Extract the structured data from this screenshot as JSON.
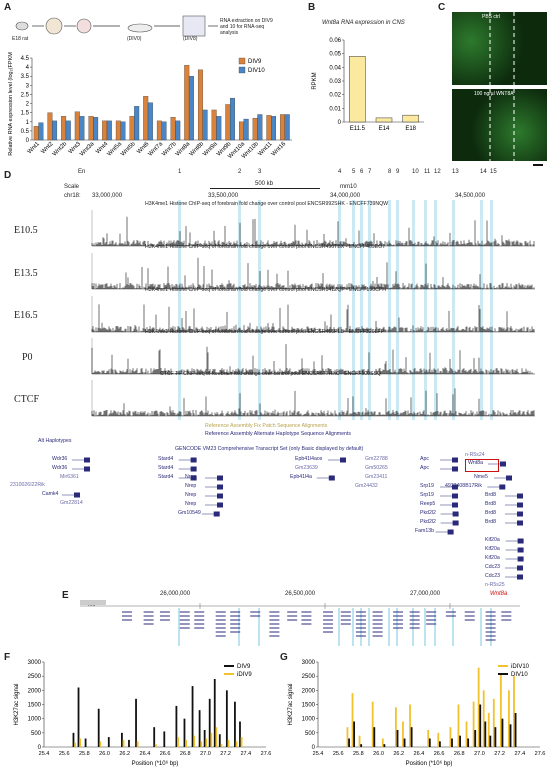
{
  "panels": {
    "A": "A",
    "B": "B",
    "C": "C",
    "D": "D",
    "E": "E",
    "F": "F",
    "G": "G"
  },
  "panelA": {
    "workflow": {
      "label_e18": "E18 rat",
      "label_div0": "(DIV0)",
      "label_div8": "(DIV8)",
      "note": "RNA extraction on DIV9 and 10 for RNA-seq analysis"
    },
    "ylabel": "Relative RNA expression level (log₂(FPKM+1))",
    "legend": [
      "DIV9",
      "DIV10"
    ],
    "colors": {
      "div9": "#d9823b",
      "div10": "#4a86c5"
    }
  },
  "panelB": {
    "title": "Wnt8a RNA expression in CNS",
    "ylabel": "RPKM"
  },
  "panelC": {
    "label_top": "PBS ctrl",
    "label_bottom": "100 ng/µl WNT8A"
  },
  "panelD": {
    "en": "En",
    "scale": "Scale",
    "chr": "chr18:",
    "scale_bar": "500 kb",
    "assembly": "mm10",
    "coords": [
      "33,000,000",
      "33,500,000",
      "34,000,000",
      "34,500,000"
    ],
    "peaks": [
      "1",
      "2",
      "3",
      "4",
      "5",
      "6",
      "7",
      "8",
      "9",
      "10",
      "11",
      "12",
      "13",
      "14",
      "15"
    ],
    "tracks": [
      {
        "stage": "E10.5",
        "title": "H3K4me1 Histone ChIP-seq of forebrain fold change over control pool ENCSR992SHK - ENCFF739NQW"
      },
      {
        "stage": "E13.5",
        "title": "H3K4me1 Histone ChIP-seq of forebrain fold change over control pool ENCSR496TBX - ENCFF409EOT"
      },
      {
        "stage": "E16.5",
        "title": "H3K4me1 Histone ChIP-seq of forebrain fold change over control pool ENCSR141ZQF - ENCFF190CPH"
      },
      {
        "stage": "P0",
        "title": "H3K4me1 Histone ChIP-seq of forebrain fold change over control pool ENCSR465PLB - ENCFF326LFP"
      },
      {
        "stage": "CTCF",
        "title": "CTCF TF ChIP-seq of forebrain fold change over control pool ENCSR677HXC - ENCFF500SSQ"
      }
    ],
    "ref_patch": "Reference Assembly Fix Patch Sequence Alignments",
    "ref_alt": "Reference Assembly Alternate Haplotype Sequence Alignments",
    "alt_hap": "Alt Haplotypes",
    "gencode": "GENCODE VM23 Comprehensive Transcript Set (only Basic displayed by default)",
    "genes": [
      "Wdr36",
      "Wdr36",
      "Mir6361",
      "2310026I22Rik",
      "Camk4",
      "Gm22814",
      "Stard4",
      "Stard4",
      "Stard4",
      "Nrep",
      "Nrep",
      "Nrep",
      "Nrep",
      "Gm10549",
      "Epb41l4aos",
      "Gm23639",
      "Epb41l4a",
      "Gm22788",
      "Gm50265",
      "Gm23411",
      "Gm24432",
      "Apc",
      "Apc",
      "Srp19",
      "Srp19",
      "Reep5",
      "Pkd2l2",
      "Pkd2l2",
      "Fam13b",
      "Wnt8a",
      "Nme5",
      "n-R5s24",
      "4933408B17Rik",
      "Brd8",
      "Brd8",
      "Brd8",
      "Brd8",
      "Kif20a",
      "Kif20a",
      "Kif20a",
      "Cdc23",
      "Cdc23",
      "n-R5s25"
    ],
    "highlight_gene": "Wnt8a"
  },
  "panelE": {
    "coords": [
      "26,000,000",
      "26,500,000",
      "27,000,000"
    ],
    "wnt8a": "Wnt8a",
    "rn6": "rn6"
  },
  "panelF": {
    "ylabel": "H3K27ac signal",
    "xlabel": "Position (*10⁶ bp)",
    "legend": [
      "DIV9",
      "iDIV9"
    ],
    "colors": [
      "#111111",
      "#f2c12e"
    ]
  },
  "panelG": {
    "ylabel": "H3K27ac signal",
    "xlabel": "Position (*10⁶ bp)",
    "legend": [
      "iDIV10",
      "DIV10"
    ],
    "colors": [
      "#f2c12e",
      "#111111"
    ]
  },
  "chart_data": [
    {
      "type": "bar",
      "categories": [
        "Wnt1",
        "Wnt2",
        "Wnt2b",
        "Wnt3",
        "Wnt3a",
        "Wnt4",
        "Wnt5a",
        "Wnt5b",
        "Wnt6",
        "Wnt7a",
        "Wnt7b",
        "Wnt8a",
        "Wnt8b",
        "Wnt9a",
        "Wnt9b",
        "Wnt10a",
        "Wnt10b",
        "Wnt11",
        "Wnt16"
      ],
      "series": [
        {
          "name": "DIV9",
          "values": [
            0.75,
            1.5,
            1.3,
            1.55,
            1.3,
            1.05,
            1.05,
            1.3,
            2.4,
            1.05,
            1.25,
            4.1,
            3.85,
            1.65,
            1.95,
            1.0,
            1.2,
            1.35,
            1.4
          ]
        },
        {
          "name": "DIV10",
          "values": [
            0.95,
            1.05,
            1.05,
            1.3,
            1.25,
            1.05,
            1.0,
            1.85,
            2.05,
            1.0,
            1.05,
            3.5,
            1.65,
            1.3,
            2.3,
            1.15,
            1.4,
            1.3,
            1.4
          ]
        }
      ],
      "ylim": [
        0,
        4.5
      ],
      "yticks": [
        "0",
        "0.5",
        "1",
        "1.5",
        "2",
        "2.5",
        "3",
        "3.5",
        "4",
        "4.5"
      ]
    },
    {
      "type": "bar",
      "categories": [
        "E11.5",
        "E14",
        "E18"
      ],
      "values": [
        0.048,
        0.003,
        0.005
      ],
      "ylim": [
        0,
        0.06
      ],
      "yticks": [
        "0",
        "0.01",
        "0.02",
        "0.03",
        "0.04",
        "0.05",
        "0.06"
      ],
      "color": "#fbe9a0"
    },
    {
      "type": "bar",
      "x": [
        25.7,
        25.75,
        25.82,
        25.95,
        26.05,
        26.18,
        26.25,
        26.32,
        26.5,
        26.6,
        26.72,
        26.8,
        26.88,
        26.95,
        27.0,
        27.05,
        27.1,
        27.15,
        27.22,
        27.3,
        27.35
      ],
      "series": [
        {
          "name": "DIV9",
          "values": [
            500,
            2100,
            300,
            1350,
            350,
            500,
            250,
            1700,
            700,
            550,
            1450,
            1000,
            2150,
            1300,
            600,
            1700,
            2400,
            450,
            2000,
            1600,
            900
          ]
        },
        {
          "name": "iDIV9",
          "values": [
            150,
            300,
            0,
            200,
            0,
            250,
            0,
            200,
            100,
            0,
            350,
            250,
            400,
            200,
            300,
            500,
            700,
            100,
            250,
            200,
            350
          ]
        }
      ],
      "xlim": [
        25.4,
        27.6
      ],
      "ylim": [
        0,
        3000
      ],
      "xticks": [
        "25.4",
        "25.6",
        "25.8",
        "26.0",
        "26.2",
        "26.4",
        "26.6",
        "26.8",
        "27.0",
        "27.2",
        "27.4",
        "27.6"
      ],
      "yticks": [
        "0",
        "500",
        "1000",
        "1500",
        "2000",
        "2500",
        "3000"
      ]
    },
    {
      "type": "bar",
      "x": [
        25.7,
        25.75,
        25.82,
        25.95,
        26.05,
        26.18,
        26.25,
        26.32,
        26.5,
        26.6,
        26.72,
        26.8,
        26.88,
        26.95,
        27.0,
        27.05,
        27.1,
        27.15,
        27.22,
        27.3,
        27.35
      ],
      "series": [
        {
          "name": "iDIV10",
          "values": [
            700,
            1900,
            400,
            1600,
            300,
            1400,
            900,
            1500,
            600,
            500,
            700,
            1500,
            900,
            1600,
            2800,
            2000,
            1200,
            1700,
            2600,
            2000,
            2500
          ]
        },
        {
          "name": "DIV10",
          "values": [
            300,
            900,
            100,
            700,
            100,
            600,
            300,
            700,
            300,
            200,
            300,
            400,
            300,
            600,
            1500,
            900,
            400,
            700,
            1000,
            800,
            1200
          ]
        }
      ],
      "xlim": [
        25.4,
        27.6
      ],
      "ylim": [
        0,
        3000
      ],
      "xticks": [
        "25.4",
        "25.6",
        "25.8",
        "26.0",
        "26.2",
        "26.4",
        "26.6",
        "26.8",
        "27.0",
        "27.2",
        "27.4",
        "27.6"
      ],
      "yticks": [
        "0",
        "500",
        "1000",
        "1500",
        "2000",
        "2500",
        "3000"
      ]
    }
  ]
}
